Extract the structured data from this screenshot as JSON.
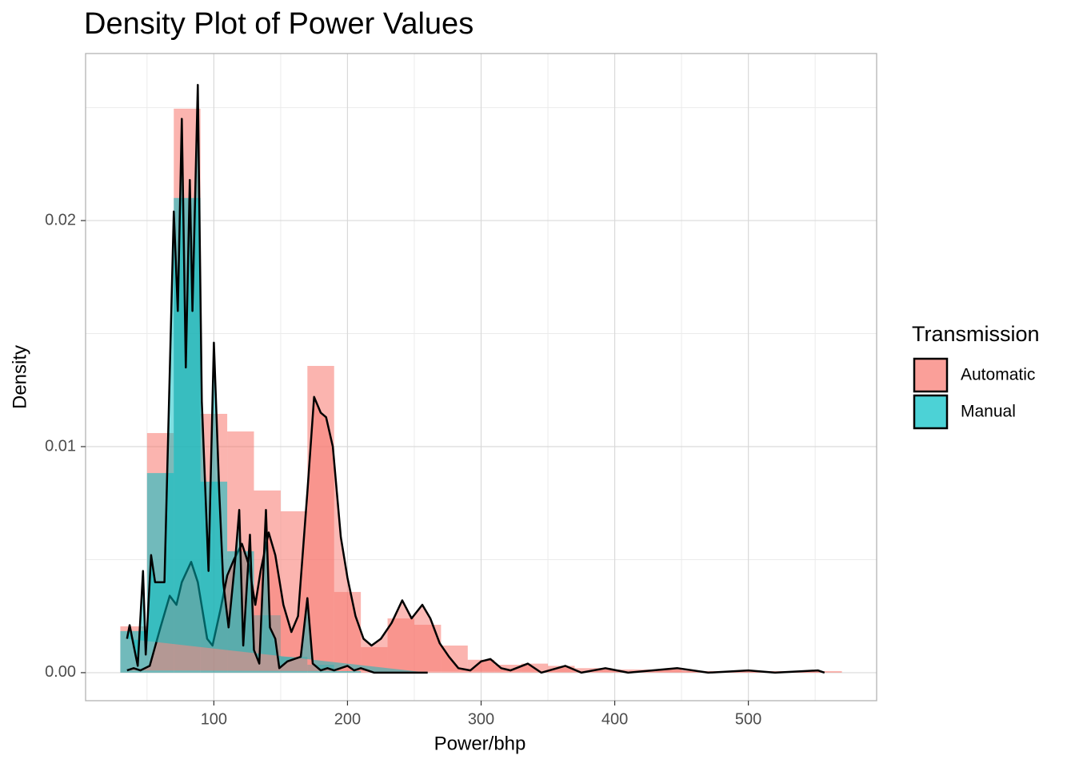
{
  "chart_data": {
    "type": "histogram",
    "title": "Density Plot of Power Values",
    "x_label": "Power/bhp",
    "y_label": "Density",
    "legend_title": "Transmission",
    "legend_position": "right",
    "grid": true,
    "xlim": [
      4,
      596
    ],
    "ylim": [
      -0.00124,
      0.02739
    ],
    "xticks": [
      100,
      200,
      300,
      400,
      500
    ],
    "minor_xticks": [
      50,
      150,
      250,
      350,
      450,
      550
    ],
    "yticks": [
      {
        "value": 0,
        "label": "0.00"
      },
      {
        "value": 0.01,
        "label": "0.01"
      },
      {
        "value": 0.02,
        "label": "0.02"
      }
    ],
    "minor_yticks": [
      0.005,
      0.015,
      0.025
    ],
    "bins": [
      30,
      50,
      70,
      90,
      110,
      130,
      150,
      170,
      190,
      210,
      230,
      250,
      270,
      290,
      310,
      330,
      350,
      370,
      390,
      410,
      430,
      450,
      470,
      490,
      510,
      530,
      550,
      570
    ],
    "series": [
      {
        "name": "Automatic",
        "color": "#F8766D",
        "values": [
          0.00205,
          0.0106,
          0.02495,
          0.01145,
          0.01067,
          0.00806,
          0.00714,
          0.01357,
          0.00357,
          0.00113,
          0.0024,
          0.00212,
          0.0012,
          0.00057,
          0.00035,
          0.0004,
          0.0003,
          0.0002,
          0.00014,
          0.00014,
          0.00014,
          7e-05,
          7e-05,
          7e-05,
          7e-05,
          7e-05,
          7e-05
        ],
        "density_x": [
          35,
          40,
          45,
          52,
          60,
          67,
          72,
          76,
          83,
          88,
          95,
          99,
          105,
          110,
          115,
          121,
          126,
          131,
          135,
          141,
          146,
          152,
          158,
          163,
          170,
          175,
          180,
          184,
          189,
          195,
          200,
          206,
          212,
          218,
          225,
          233,
          241,
          248,
          256,
          262,
          269,
          276,
          283,
          292,
          300,
          307,
          315,
          322,
          335,
          345,
          363,
          375,
          393,
          410,
          447,
          470,
          500,
          520,
          552,
          557
        ],
        "density": [
          0.0001,
          0.0002,
          0.0001,
          0.0003,
          0.002,
          0.0034,
          0.003,
          0.004,
          0.0049,
          0.004,
          0.0015,
          0.0012,
          0.0028,
          0.0043,
          0.005,
          0.0057,
          0.0048,
          0.003,
          0.0045,
          0.0062,
          0.0052,
          0.003,
          0.0018,
          0.0025,
          0.008,
          0.0122,
          0.0115,
          0.0113,
          0.01,
          0.006,
          0.0042,
          0.0025,
          0.0015,
          0.0012,
          0.0015,
          0.0022,
          0.0032,
          0.0024,
          0.003,
          0.0024,
          0.0013,
          0.0007,
          0.0002,
          0.0001,
          0.0005,
          0.0006,
          0.0002,
          0.0001,
          0.0004,
          0,
          0.0003,
          0,
          0.0002,
          0,
          0.0002,
          0,
          0.0001,
          0,
          0.0001,
          0
        ]
      },
      {
        "name": "Manual",
        "color": "#00BFC4",
        "values": [
          0.00184,
          0.00883,
          0.021,
          0.00845,
          0.00537,
          0.00254,
          0.0007,
          0.00035,
          7e-05,
          0,
          0,
          0,
          0,
          0,
          0,
          0,
          0,
          0,
          0,
          0,
          0,
          0,
          0,
          0,
          0,
          0,
          0
        ],
        "density_x": [
          35,
          37,
          40,
          43,
          47,
          49,
          53,
          56,
          63,
          70,
          73,
          76,
          79,
          82,
          84,
          88,
          91,
          96,
          100,
          104,
          107,
          111,
          116,
          119,
          122,
          127,
          130,
          134,
          139,
          142,
          146,
          149,
          155,
          165,
          170,
          174,
          180,
          185,
          190,
          200,
          205,
          210,
          220,
          260
        ],
        "density": [
          0.0015,
          0.0021,
          0.0012,
          0.0003,
          0.0045,
          0.0008,
          0.0052,
          0.004,
          0.004,
          0.0204,
          0.016,
          0.0245,
          0.0135,
          0.0218,
          0.016,
          0.026,
          0.012,
          0.0045,
          0.0146,
          0.008,
          0.004,
          0.002,
          0.005,
          0.0072,
          0.0012,
          0.0061,
          0.001,
          0.0004,
          0.0072,
          0.002,
          0.0015,
          0.0002,
          0.0005,
          0.0007,
          0.0033,
          0.0004,
          0.0001,
          0.0002,
          0.0001,
          0.0003,
          0.0001,
          0.0002,
          0,
          0
        ]
      }
    ]
  }
}
